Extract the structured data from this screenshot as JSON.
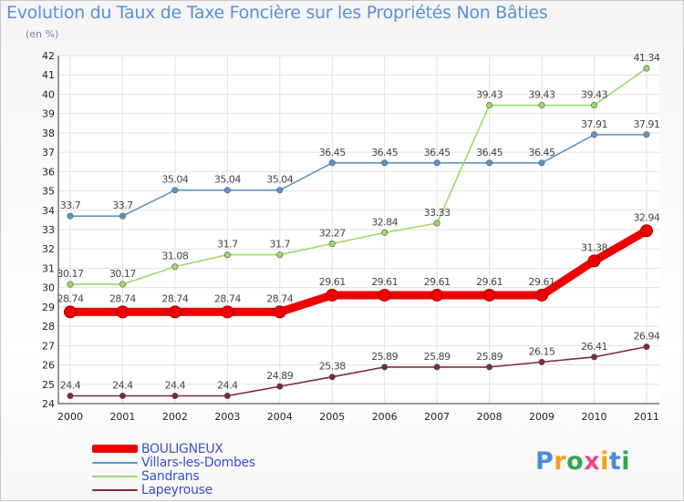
{
  "header": {
    "title": "Evolution du Taux de Taxe Foncière sur les Propriétés Non Bâties",
    "subtitle": "(en %)"
  },
  "logo": {
    "text": "Proxiti",
    "colors": [
      "#4a8ed8",
      "#f2a01b",
      "#2fa84f",
      "#e94a8a",
      "#f2a01b",
      "#4a8ed8",
      "#2fa84f"
    ]
  },
  "chart_data": {
    "type": "line",
    "x": [
      "2000",
      "2001",
      "2002",
      "2003",
      "2004",
      "2005",
      "2006",
      "2007",
      "2008",
      "2009",
      "2010",
      "2011"
    ],
    "ylim": [
      24,
      42
    ],
    "yticks": [
      "24",
      "25",
      "26",
      "27",
      "28",
      "29",
      "30",
      "31",
      "32",
      "33",
      "34",
      "35",
      "36",
      "37",
      "38",
      "39",
      "40",
      "41",
      "42"
    ],
    "grid": true,
    "legend_position": "bottom-left",
    "series": [
      {
        "name": "BOULIGNEUX",
        "color": "#ee0000",
        "values": [
          28.74,
          28.74,
          28.74,
          28.74,
          28.74,
          29.61,
          29.61,
          29.61,
          29.61,
          29.61,
          31.38,
          32.94
        ],
        "labels": [
          "28.74",
          "28.74",
          "28.74",
          "28.74",
          "28.74",
          "29.61",
          "29.61",
          "29.61",
          "29.61",
          "29.61",
          "31.38",
          "32.94"
        ],
        "emphasis": true
      },
      {
        "name": "Villars-les-Dombes",
        "color": "#5b96c9",
        "values": [
          33.7,
          33.7,
          35.04,
          35.04,
          35.04,
          36.45,
          36.45,
          36.45,
          36.45,
          36.45,
          37.91,
          37.91
        ],
        "labels": [
          "33.7",
          "33.7",
          "35.04",
          "35.04",
          "35.04",
          "36.45",
          "36.45",
          "36.45",
          "36.45",
          "36.45",
          "37.91",
          "37.91"
        ]
      },
      {
        "name": "Sandrans",
        "color": "#9bd96a",
        "values": [
          30.17,
          30.17,
          31.08,
          31.7,
          31.7,
          32.27,
          32.84,
          33.33,
          39.43,
          39.43,
          39.43,
          41.34
        ],
        "labels": [
          "30.17",
          "30.17",
          "31.08",
          "31.7",
          "31.7",
          "32.27",
          "32.84",
          "33.33",
          "39.43",
          "39.43",
          "39.43",
          "41.34"
        ]
      },
      {
        "name": "Lapeyrouse",
        "color": "#7a2c35",
        "values": [
          24.4,
          24.4,
          24.4,
          24.4,
          24.89,
          25.38,
          25.89,
          25.89,
          25.89,
          26.15,
          26.41,
          26.94
        ],
        "labels": [
          "24.4",
          "24.4",
          "24.4",
          "24.4",
          "24.89",
          "25.38",
          "25.89",
          "25.89",
          "25.89",
          "26.15",
          "26.41",
          "26.94"
        ]
      }
    ]
  }
}
